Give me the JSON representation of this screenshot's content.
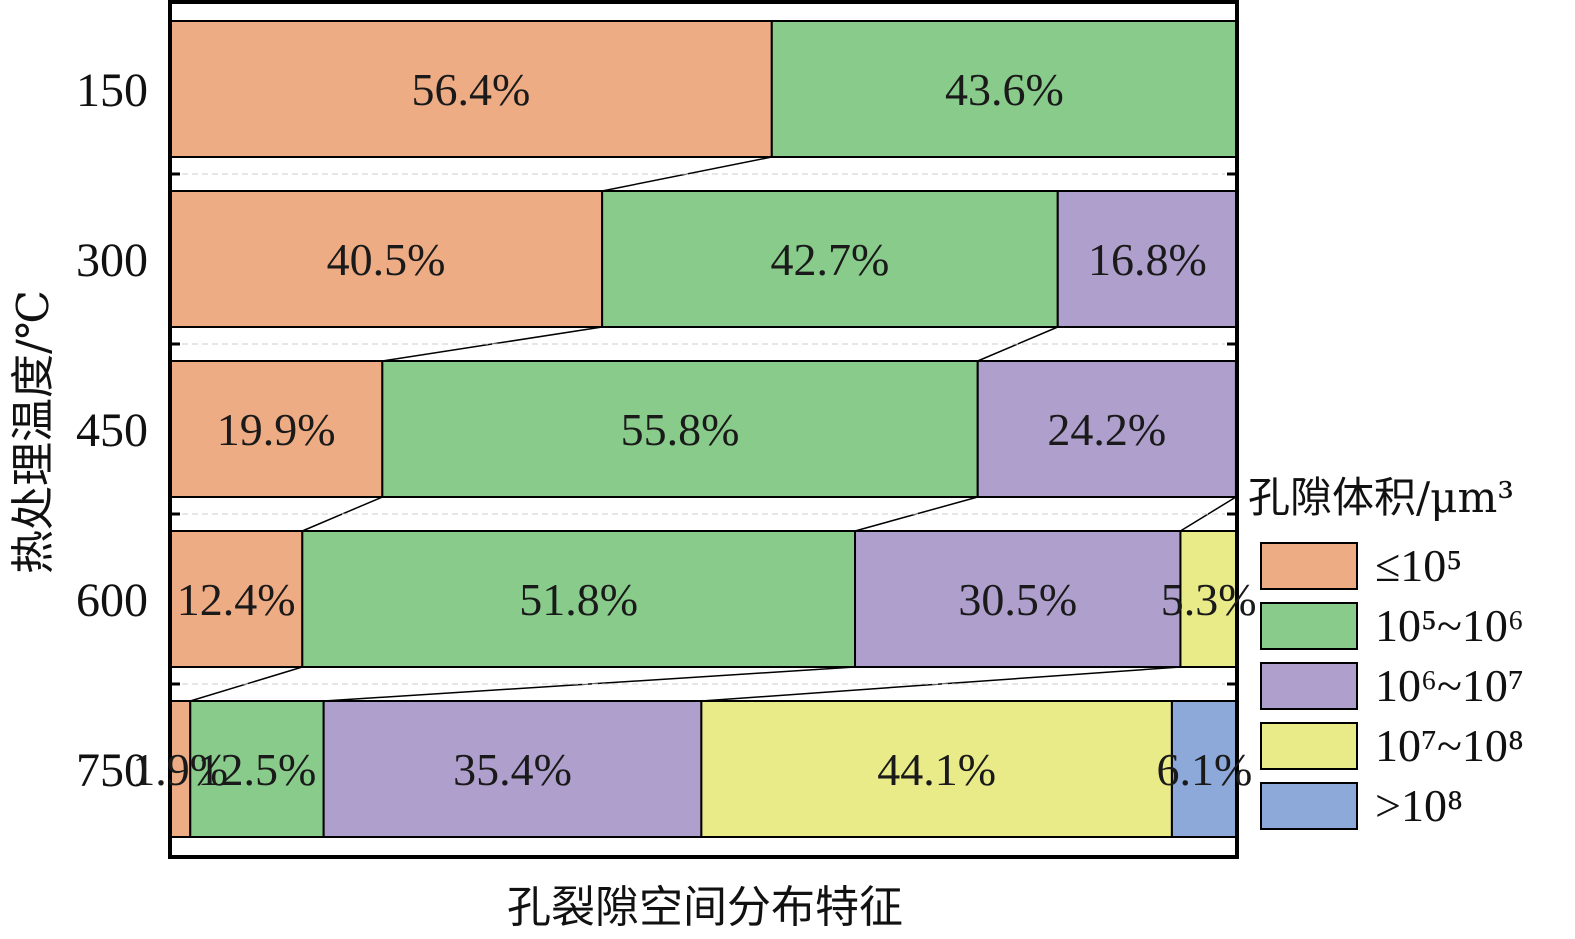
{
  "chart_data": {
    "type": "bar",
    "orientation": "horizontal",
    "stacked": true,
    "percent": true,
    "categories": [
      "150",
      "300",
      "450",
      "600",
      "750"
    ],
    "xlabel": "孔裂隙空间分布特征",
    "ylabel": "热处理温度/℃",
    "xlim": [
      0,
      100
    ],
    "grid": false,
    "legend_title": "孔隙体积/μm³",
    "legend_position": "right",
    "series": [
      {
        "name": "≤10⁵",
        "color": "#eeac84",
        "values": [
          56.4,
          40.5,
          19.9,
          12.4,
          1.9
        ]
      },
      {
        "name": "10⁵~10⁶",
        "color": "#88cb8b",
        "values": [
          43.6,
          42.7,
          55.8,
          51.8,
          12.5
        ]
      },
      {
        "name": "10⁶~10⁷",
        "color": "#ae9fcd",
        "values": [
          0,
          16.8,
          24.2,
          30.5,
          35.4
        ]
      },
      {
        "name": "10⁷~10⁸",
        "color": "#e9ea88",
        "values": [
          0,
          0,
          0,
          5.3,
          44.1
        ]
      },
      {
        "name": ">10⁸",
        "color": "#8ca9d9",
        "values": [
          0,
          0,
          0,
          0,
          6.1
        ]
      }
    ],
    "data_labels": [
      [
        "56.4%",
        "43.6%",
        "",
        "",
        ""
      ],
      [
        "40.5%",
        "42.7%",
        "16.8%",
        "",
        ""
      ],
      [
        "19.9%",
        "55.8%",
        "24.2%",
        "",
        ""
      ],
      [
        "12.4%",
        "51.8%",
        "30.5%",
        "5.3%",
        ""
      ],
      [
        "1.9%",
        "12.5%",
        "35.4%",
        "44.1%",
        "6.1%"
      ]
    ]
  }
}
